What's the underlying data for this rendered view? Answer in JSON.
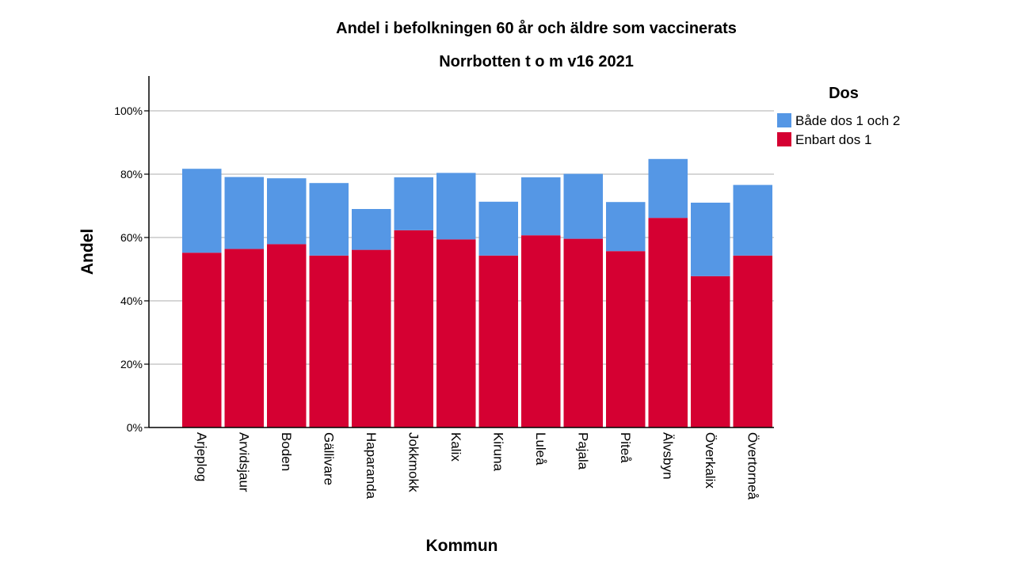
{
  "chart_data": {
    "type": "bar",
    "stacked": true,
    "title": "Andel i befolkningen 60 år och äldre som vaccinerats",
    "subtitle": "Norrbotten t o m v16 2021",
    "xlabel": "Kommun",
    "ylabel": "Andel",
    "ylim": [
      0,
      111
    ],
    "yticks": [
      "0%",
      "20%",
      "40%",
      "60%",
      "80%",
      "100%"
    ],
    "grid": true,
    "legend_title": "Dos",
    "legend_position": "top-right",
    "categories": [
      "Arjeplog",
      "Arvidsjaur",
      "Boden",
      "Gällivare",
      "Haparanda",
      "Jokkmokk",
      "Kalix",
      "Kiruna",
      "Luleå",
      "Pajala",
      "Piteå",
      "Älvsbyn",
      "Överkalix",
      "Övertorneå"
    ],
    "series": [
      {
        "name": "Enbart dos 1",
        "color": "#d50032",
        "values": [
          55.2,
          56.4,
          57.9,
          54.3,
          56.1,
          62.3,
          59.4,
          54.3,
          60.7,
          59.6,
          55.7,
          66.2,
          47.8,
          54.3
        ]
      },
      {
        "name": "Både dos 1 och 2",
        "color": "#5597e5",
        "values": [
          26.5,
          22.7,
          20.8,
          22.9,
          12.9,
          16.7,
          21.0,
          17.0,
          18.3,
          20.5,
          15.5,
          18.6,
          23.2,
          22.3
        ]
      }
    ],
    "legend_order": [
      "Både dos 1 och 2",
      "Enbart dos 1"
    ]
  }
}
